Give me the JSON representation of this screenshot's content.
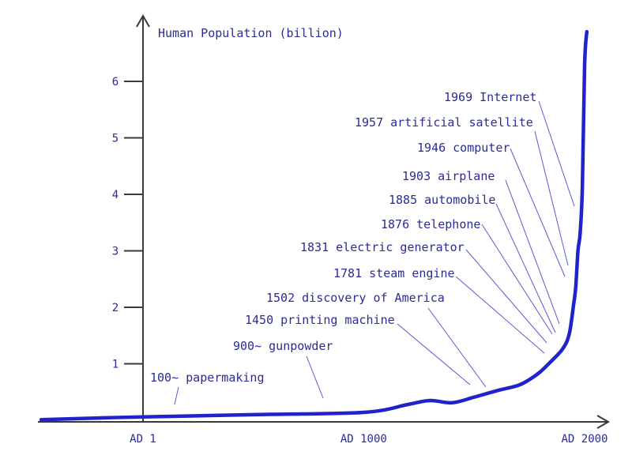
{
  "chart_data": {
    "type": "line",
    "title": "",
    "ylabel": "Human Population (billion)",
    "xlabel": "",
    "x_ticks": [
      {
        "value": 1,
        "label": "AD 1"
      },
      {
        "value": 1000,
        "label": "AD 1000"
      },
      {
        "value": 2000,
        "label": "AD 2000"
      }
    ],
    "y_ticks": [
      {
        "value": 1,
        "label": "1"
      },
      {
        "value": 2,
        "label": "2"
      },
      {
        "value": 3,
        "label": "3"
      },
      {
        "value": 4,
        "label": "4"
      },
      {
        "value": 5,
        "label": "5"
      },
      {
        "value": 6,
        "label": "6"
      }
    ],
    "xlim": [
      -460,
      2100
    ],
    "ylim": [
      -0.2,
      7.0
    ],
    "grid": false,
    "series": [
      {
        "name": "",
        "x": [
          -460,
          -200,
          1,
          500,
          1000,
          1200,
          1300,
          1400,
          1500,
          1600,
          1700,
          1750,
          1800,
          1850,
          1900,
          1930,
          1950,
          1960,
          1970,
          1980,
          1990,
          2000,
          2010
        ],
        "y": [
          0.01,
          0.04,
          0.06,
          0.1,
          0.14,
          0.28,
          0.35,
          0.31,
          0.41,
          0.52,
          0.62,
          0.72,
          0.86,
          1.05,
          1.26,
          1.52,
          2.04,
          2.36,
          3.0,
          3.32,
          4.15,
          6.28,
          6.88
        ]
      }
    ],
    "annotations": [
      {
        "label": "100~ papermaking",
        "year": 100
      },
      {
        "label": "900~ gunpowder",
        "year": 900
      },
      {
        "label": "1450 printing machine",
        "year": 1450
      },
      {
        "label": "1502 discovery of America",
        "year": 1502
      },
      {
        "label": "1781 steam engine",
        "year": 1781
      },
      {
        "label": "1831 electric generator",
        "year": 1831
      },
      {
        "label": "1876 telephone",
        "year": 1876
      },
      {
        "label": "1885 automobile",
        "year": 1885
      },
      {
        "label": "1903 airplane",
        "year": 1903
      },
      {
        "label": "1946 computer",
        "year": 1946
      },
      {
        "label": "1957 artificial satellite",
        "year": 1957
      },
      {
        "label": "1969 Internet",
        "year": 1969
      }
    ],
    "colors": {
      "curve": "#2222cc",
      "text": "#2b2b99",
      "axis": "#3a3a3a",
      "leader": "#5a5ad0"
    }
  }
}
